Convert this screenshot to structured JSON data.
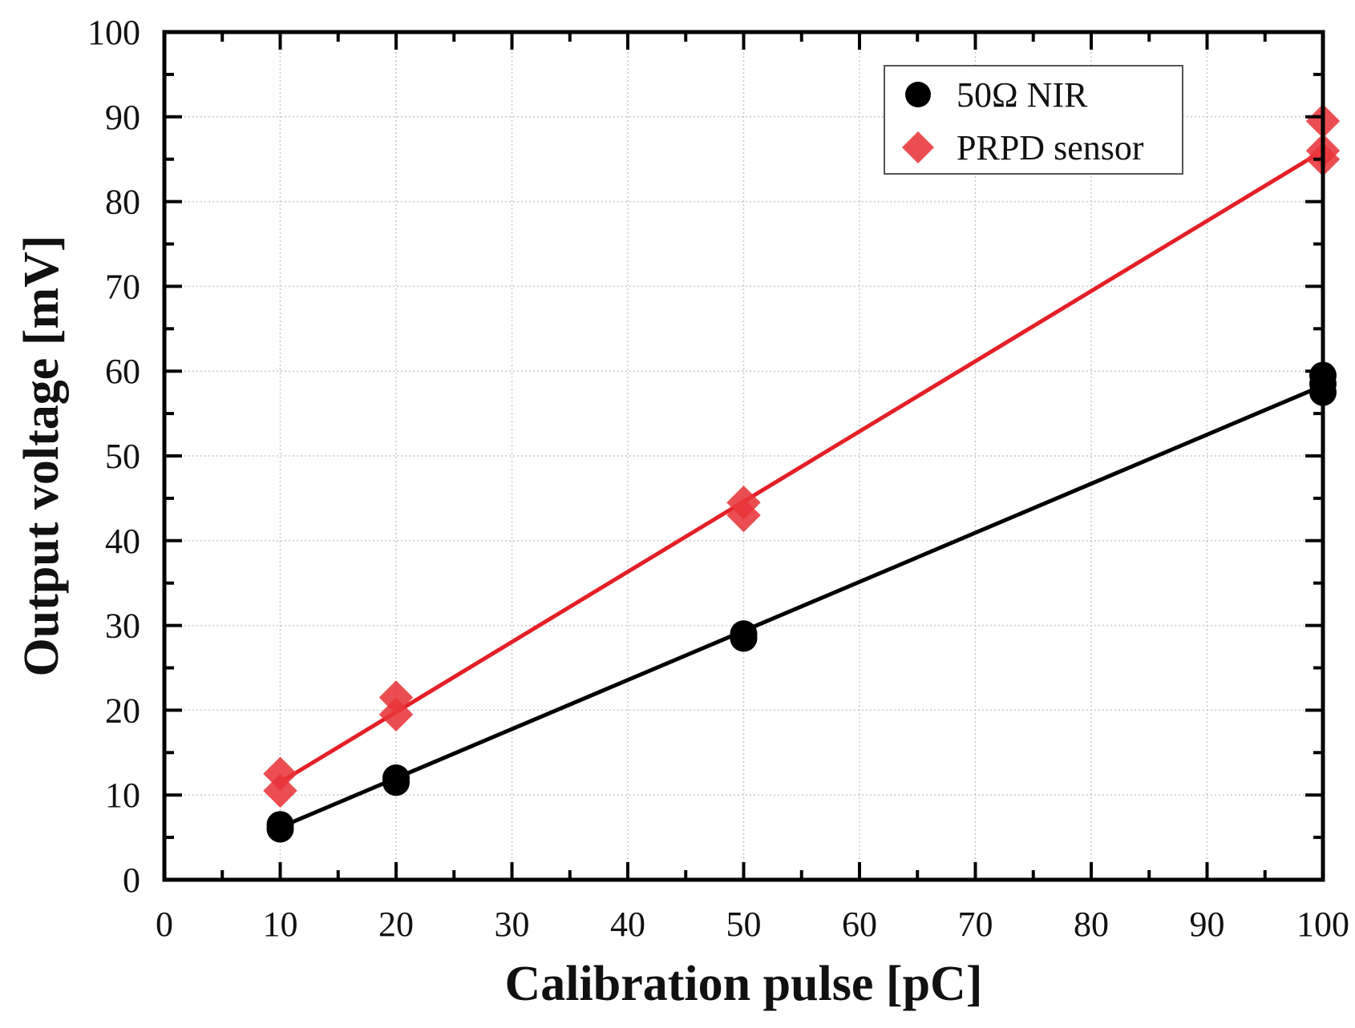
{
  "chart_data": {
    "type": "scatter",
    "xlabel": "Calibration pulse [pC]",
    "ylabel": "Output voltage [mV]",
    "xlim": [
      0,
      100
    ],
    "ylim": [
      0,
      100
    ],
    "xticks": [
      0,
      10,
      20,
      30,
      40,
      50,
      60,
      70,
      80,
      90,
      100
    ],
    "yticks": [
      0,
      10,
      20,
      30,
      40,
      50,
      60,
      70,
      80,
      90,
      100
    ],
    "grid": true,
    "legend_position": "top-right",
    "series": [
      {
        "name": "50Ω NIR",
        "marker": "circle",
        "color": "#000000",
        "points": [
          {
            "x": 10,
            "y": 6.5
          },
          {
            "x": 10,
            "y": 6.0
          },
          {
            "x": 20,
            "y": 12.0
          },
          {
            "x": 20,
            "y": 11.5
          },
          {
            "x": 50,
            "y": 29.0
          },
          {
            "x": 50,
            "y": 28.5
          },
          {
            "x": 100,
            "y": 59.5
          },
          {
            "x": 100,
            "y": 58.5
          },
          {
            "x": 100,
            "y": 57.5
          }
        ],
        "fit_line": {
          "x": [
            10,
            100
          ],
          "y": [
            6.2,
            58.3
          ]
        }
      },
      {
        "name": "PRPD sensor",
        "marker": "diamond",
        "color": "#e8353a",
        "points": [
          {
            "x": 10,
            "y": 12.5
          },
          {
            "x": 10,
            "y": 10.5
          },
          {
            "x": 20,
            "y": 21.5
          },
          {
            "x": 20,
            "y": 19.5
          },
          {
            "x": 50,
            "y": 44.5
          },
          {
            "x": 50,
            "y": 43.0
          },
          {
            "x": 100,
            "y": 89.5
          },
          {
            "x": 100,
            "y": 86.0
          },
          {
            "x": 100,
            "y": 85.0
          }
        ],
        "fit_line": {
          "x": [
            10,
            100
          ],
          "y": [
            11.5,
            86.0
          ]
        }
      }
    ],
    "line_color": "#e41f26"
  }
}
